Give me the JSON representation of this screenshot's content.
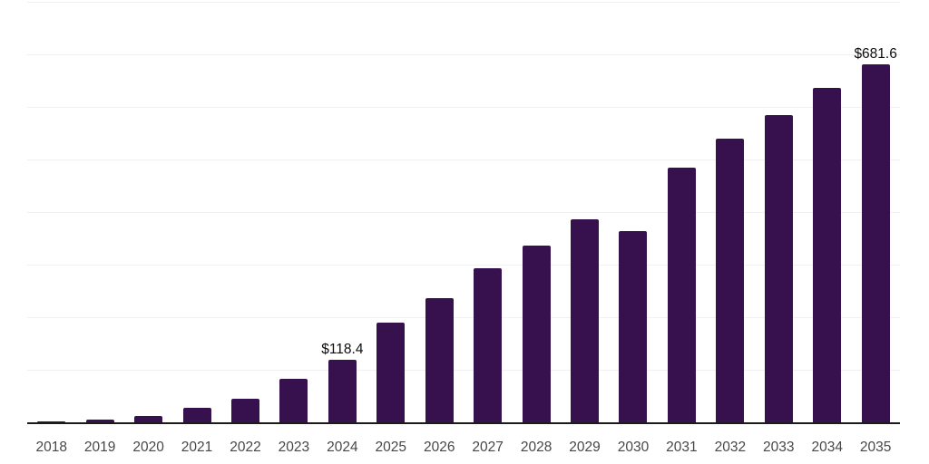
{
  "chart_data": {
    "type": "bar",
    "categories": [
      "2018",
      "2019",
      "2020",
      "2021",
      "2022",
      "2023",
      "2024",
      "2025",
      "2026",
      "2027",
      "2028",
      "2029",
      "2030",
      "2031",
      "2032",
      "2033",
      "2034",
      "2035"
    ],
    "values": [
      1.5,
      6,
      11.5,
      27.5,
      45.5,
      83,
      118.4,
      189,
      237,
      293,
      337,
      387,
      364,
      484,
      539,
      584,
      636,
      681.6
    ],
    "data_labels": {
      "2024": "$118.4",
      "2035": "$681.6"
    },
    "ylim": [
      0,
      800
    ],
    "gridline_step": 100,
    "y_axis_labels_visible": false,
    "legend": "none",
    "grid": "horizontal",
    "colors": {
      "bar": "#36114E",
      "gridline": "#f0f0f0",
      "axis_line": "#1b1b1b",
      "tick_label": "#474747",
      "data_label": "#0d0d0d",
      "background": "#ffffff"
    }
  }
}
